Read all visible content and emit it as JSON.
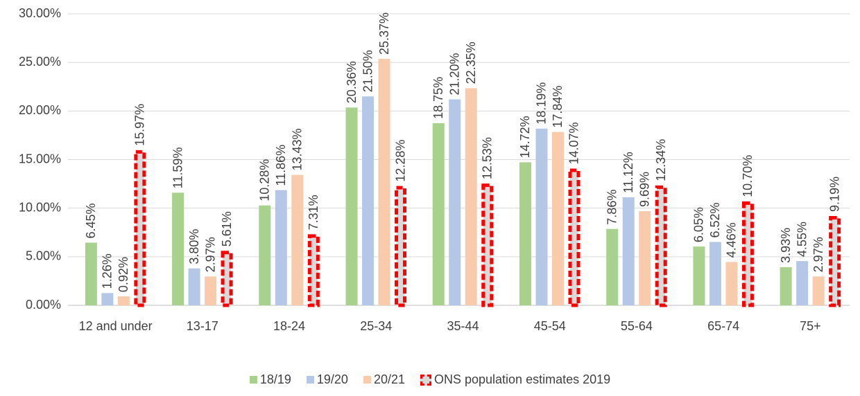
{
  "chart_data": {
    "type": "bar",
    "categories": [
      "12 and under",
      "13-17",
      "18-24",
      "25-34",
      "35-44",
      "45-54",
      "55-64",
      "65-74",
      "75+"
    ],
    "series": [
      {
        "name": "18/19",
        "color": "#a9d18e",
        "values": [
          6.45,
          11.59,
          10.28,
          20.36,
          18.75,
          14.72,
          7.86,
          6.05,
          3.93
        ],
        "value_labels": [
          "6.45%",
          "11.59%",
          "10.28%",
          "20.36%",
          "18.75%",
          "14.72%",
          "7.86%",
          "6.05%",
          "3.93%"
        ]
      },
      {
        "name": "19/20",
        "color": "#b4c7e7",
        "values": [
          1.26,
          3.8,
          11.86,
          21.5,
          21.2,
          18.19,
          11.12,
          6.52,
          4.55
        ],
        "value_labels": [
          "1.26%",
          "3.80%",
          "11.86%",
          "21.50%",
          "21.20%",
          "18.19%",
          "11.12%",
          "6.52%",
          "4.55%"
        ]
      },
      {
        "name": "20/21",
        "color": "#f8cbad",
        "values": [
          0.92,
          2.97,
          13.43,
          25.37,
          22.35,
          17.84,
          9.69,
          4.46,
          2.97
        ],
        "value_labels": [
          "0.92%",
          "2.97%",
          "13.43%",
          "25.37%",
          "22.35%",
          "17.84%",
          "9.69%",
          "4.46%",
          "2.97%"
        ]
      },
      {
        "name": "ONS population estimates 2019",
        "color": "#ff0000",
        "fill": "#d9d9d9",
        "dashed": true,
        "values": [
          15.97,
          5.61,
          7.31,
          12.28,
          12.53,
          14.07,
          12.34,
          10.7,
          9.19
        ],
        "value_labels": [
          "15.97%",
          "5.61%",
          "7.31%",
          "12.28%",
          "12.53%",
          "14.07%",
          "12.34%",
          "10.70%",
          "9.19%"
        ]
      }
    ],
    "ylim": [
      0,
      30
    ],
    "yticks": [
      {
        "value": 0,
        "label": "0.00%"
      },
      {
        "value": 5,
        "label": "5.00%"
      },
      {
        "value": 10,
        "label": "10.00%"
      },
      {
        "value": 15,
        "label": "15.00%"
      },
      {
        "value": 20,
        "label": "20.00%"
      },
      {
        "value": 25,
        "label": "25.00%"
      },
      {
        "value": 30,
        "label": "30.00%"
      }
    ],
    "grid": true,
    "legend": "bottom"
  }
}
